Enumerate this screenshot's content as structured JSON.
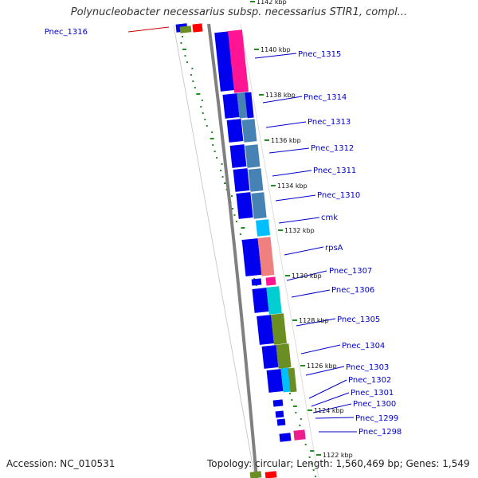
{
  "title": "Polynucleobacter necessarius subsp. necessarius STIR1, compl...",
  "footer": {
    "accession": "Accession: NC_010531",
    "topology": "Topology: circular; Length: 1,560,469 bp; Genes: 1,549"
  },
  "kbp_ticks": [
    "1142 kbp",
    "1140 kbp",
    "1138 kbp",
    "1136 kbp",
    "1134 kbp",
    "1132 kbp",
    "1130 kbp",
    "1128 kbp",
    "1126 kbp",
    "1124 kbp",
    "1122 kbp"
  ],
  "genes": [
    {
      "label": "Pnec_1316",
      "color": "#cc0000"
    },
    {
      "label": "Pnec_1315",
      "color": "#0000cc"
    },
    {
      "label": "Pnec_1314",
      "color": "#0000cc"
    },
    {
      "label": "Pnec_1313",
      "color": "#0000cc"
    },
    {
      "label": "Pnec_1312",
      "color": "#0000cc"
    },
    {
      "label": "Pnec_1311",
      "color": "#0000cc"
    },
    {
      "label": "Pnec_1310",
      "color": "#0000cc"
    },
    {
      "label": "cmk",
      "color": "#0000cc"
    },
    {
      "label": "rpsA",
      "color": "#0000cc"
    },
    {
      "label": "Pnec_1307",
      "color": "#0000cc"
    },
    {
      "label": "Pnec_1306",
      "color": "#0000cc"
    },
    {
      "label": "Pnec_1305",
      "color": "#0000cc"
    },
    {
      "label": "Pnec_1304",
      "color": "#0000cc"
    },
    {
      "label": "Pnec_1303",
      "color": "#0000cc"
    },
    {
      "label": "Pnec_1302",
      "color": "#0000cc"
    },
    {
      "label": "Pnec_1301",
      "color": "#0000cc"
    },
    {
      "label": "Pnec_1300",
      "color": "#0000cc"
    },
    {
      "label": "Pnec_1299",
      "color": "#0000cc"
    },
    {
      "label": "Pnec_1298",
      "color": "#0000cc"
    }
  ],
  "colors": {
    "forward_strand": "#0000ee",
    "backbone": "#808080",
    "gc_plot": "#228b22",
    "cog_pink": "#ff1493",
    "cog_steelblue": "#4682b4",
    "cog_cyan": "#00bfff",
    "cog_salmon": "#f08080",
    "cog_turquoise": "#00ced1",
    "cog_olive": "#6b8e23"
  }
}
